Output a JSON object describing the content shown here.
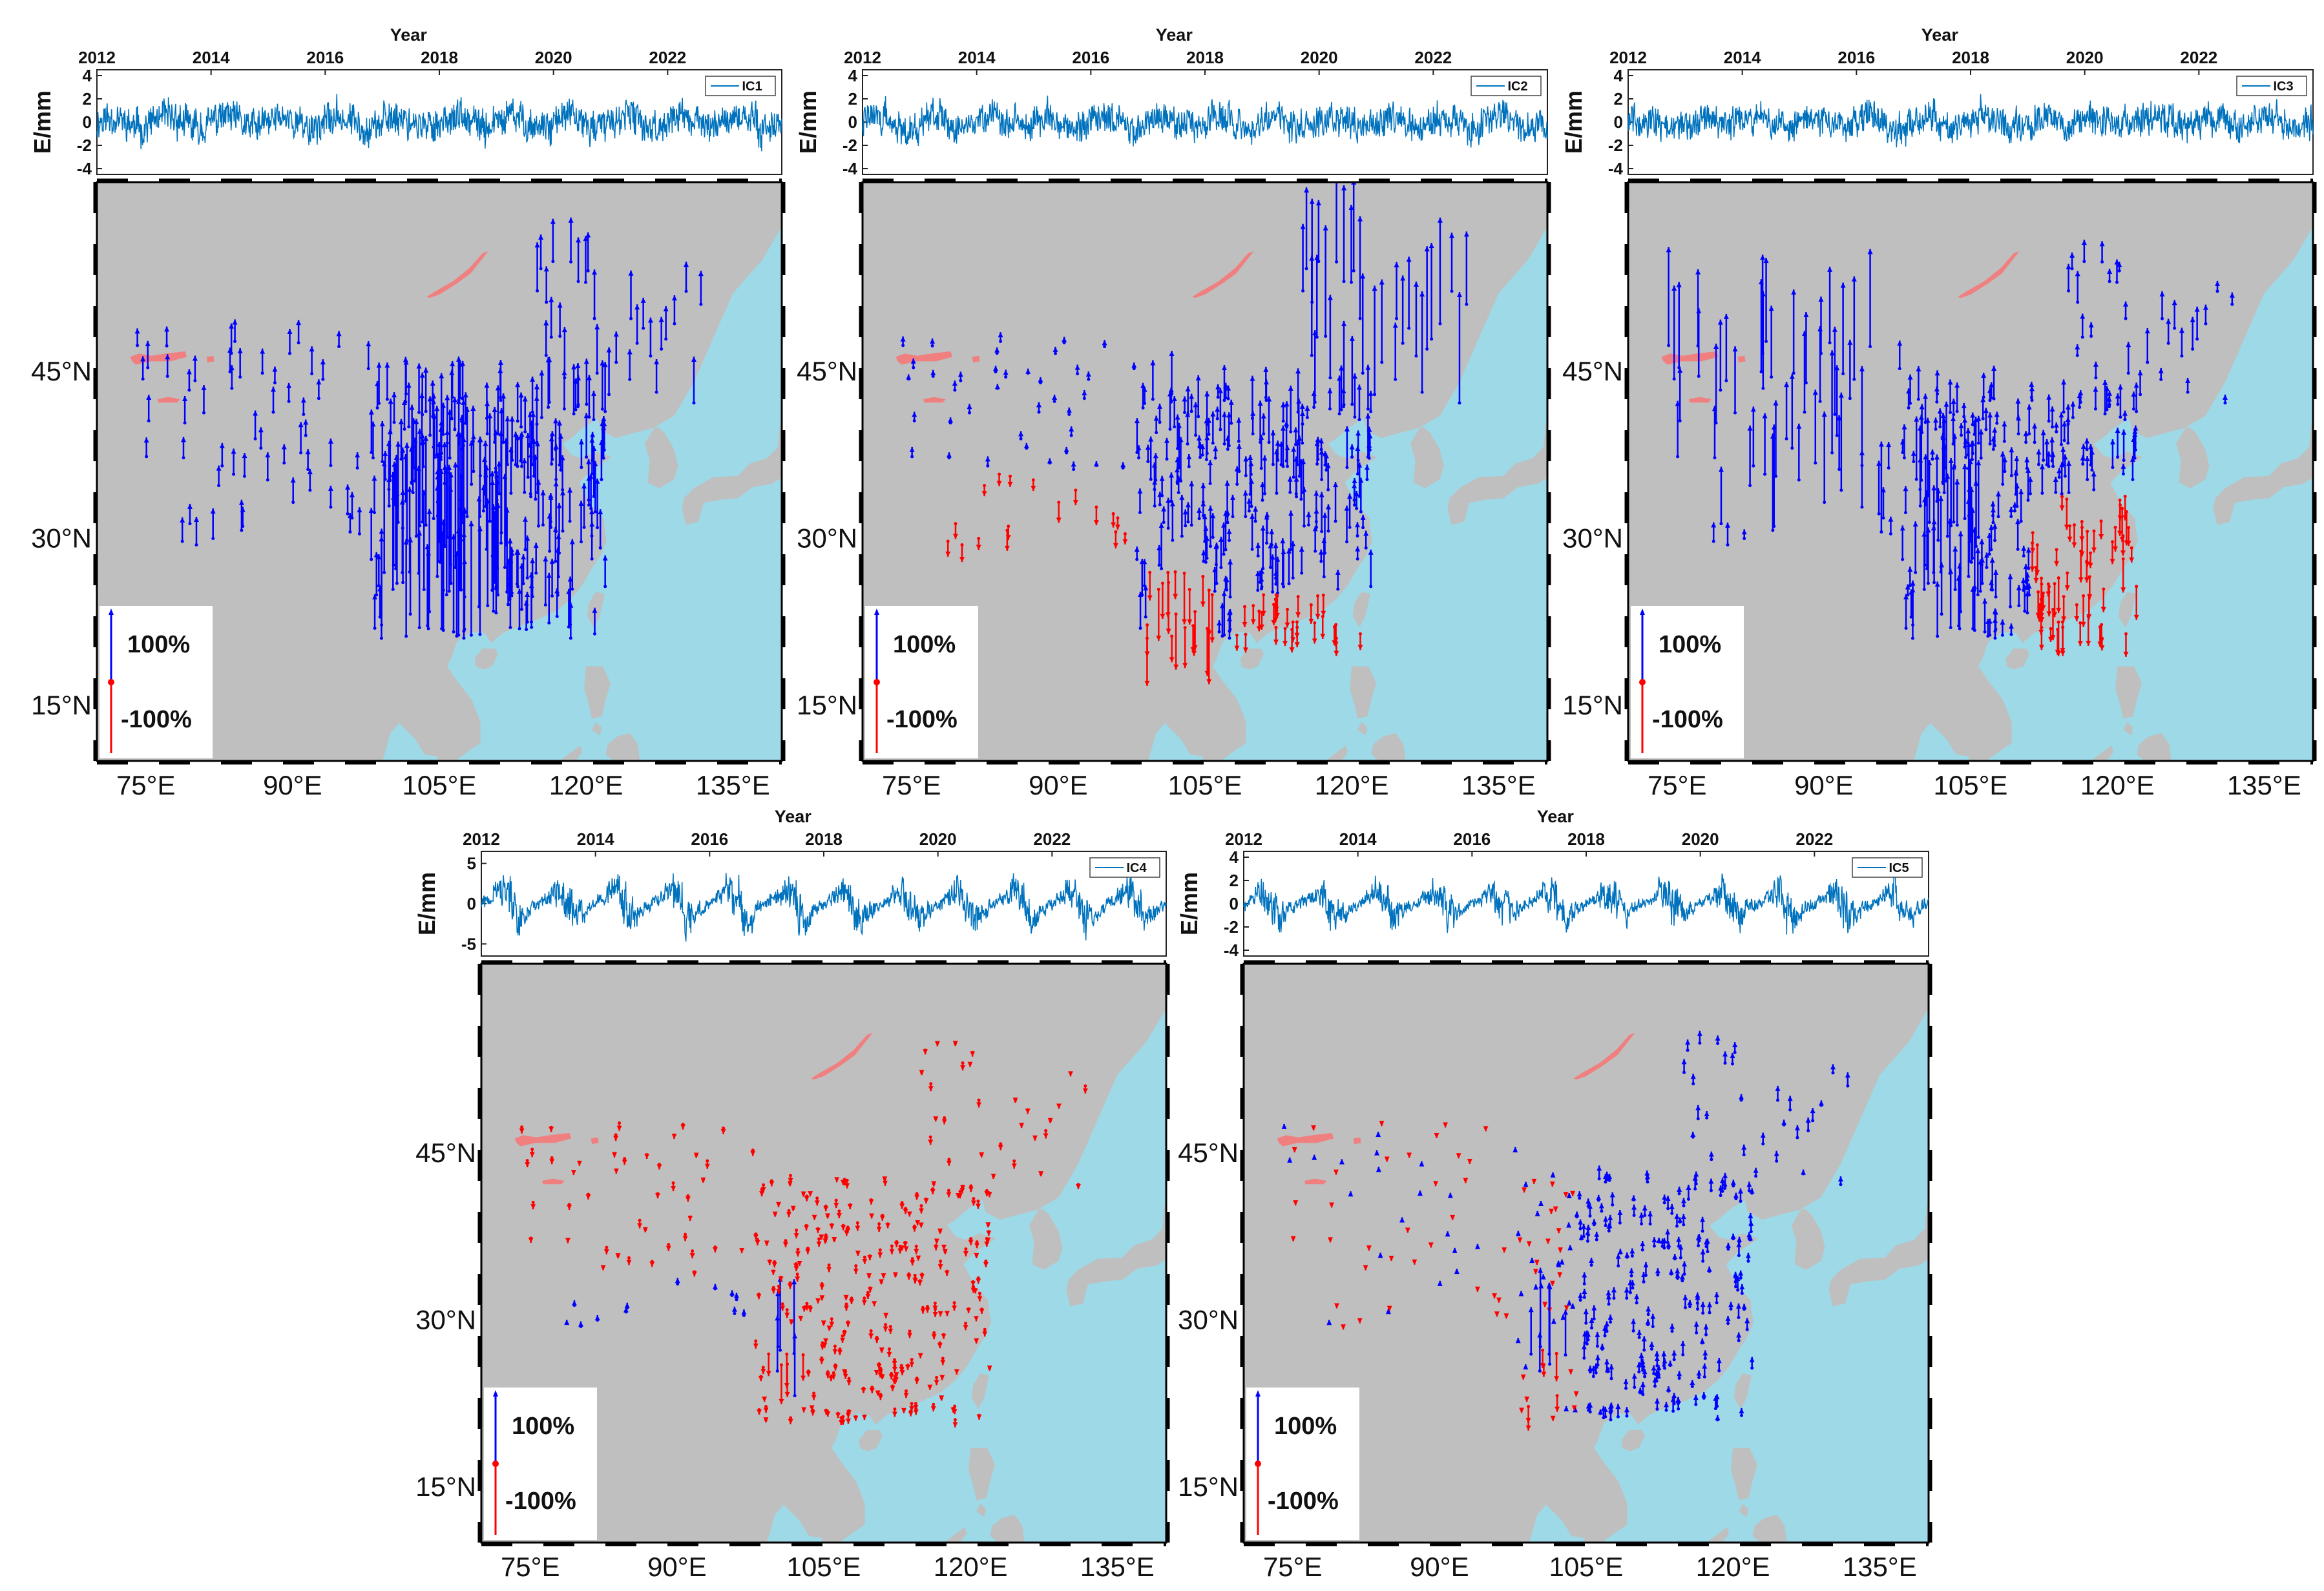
{
  "chart_data": [
    {
      "type": "line+map",
      "id": "IC1",
      "series": [
        {
          "name": "IC1",
          "description": "E component time series",
          "x_range": [
            2012,
            2024
          ],
          "y_amplitude": 3.2,
          "seed": 11,
          "seasonal": 0.3
        }
      ],
      "ts_title": "Year",
      "ts_xticks": [
        "2012",
        "2014",
        "2016",
        "2018",
        "2020",
        "2022"
      ],
      "ts_yticks": [
        "4",
        "2",
        "0",
        "-2",
        "-4"
      ],
      "ts_ylim": [
        -4.5,
        4.5
      ],
      "ts_ylabel": "E/mm",
      "ts_legend": "IC1",
      "map_lon_ticks": [
        "75°E",
        "90°E",
        "105°E",
        "120°E",
        "135°E"
      ],
      "map_lat_ticks": [
        "45°N",
        "30°N",
        "15°N"
      ],
      "map_lon_range": [
        70,
        140
      ],
      "map_lat_range": [
        10,
        62
      ],
      "legend_pos": "100%",
      "legend_neg": "-100%",
      "vectors": {
        "mode": "ic1",
        "seed": 101
      }
    },
    {
      "type": "line+map",
      "id": "IC2",
      "series": [
        {
          "name": "IC2",
          "description": "E component time series",
          "x_range": [
            2012,
            2024
          ],
          "y_amplitude": 3.0,
          "seed": 22,
          "seasonal": 0.4
        }
      ],
      "ts_title": "Year",
      "ts_xticks": [
        "2012",
        "2014",
        "2016",
        "2018",
        "2020",
        "2022"
      ],
      "ts_yticks": [
        "4",
        "2",
        "0",
        "-2",
        "-4"
      ],
      "ts_ylim": [
        -4.5,
        4.5
      ],
      "ts_ylabel": "E/mm",
      "ts_legend": "IC2",
      "map_lon_ticks": [
        "75°E",
        "90°E",
        "105°E",
        "120°E",
        "135°E"
      ],
      "map_lat_ticks": [
        "45°N",
        "30°N",
        "15°N"
      ],
      "map_lon_range": [
        70,
        140
      ],
      "map_lat_range": [
        10,
        62
      ],
      "legend_pos": "100%",
      "legend_neg": "-100%",
      "vectors": {
        "mode": "ic2",
        "seed": 202
      }
    },
    {
      "type": "line+map",
      "id": "IC3",
      "series": [
        {
          "name": "IC3",
          "description": "E component time series",
          "x_range": [
            2012,
            2024
          ],
          "y_amplitude": 3.0,
          "seed": 33,
          "seasonal": 0.3
        }
      ],
      "ts_title": "Year",
      "ts_xticks": [
        "2012",
        "2014",
        "2016",
        "2018",
        "2020",
        "2022"
      ],
      "ts_yticks": [
        "4",
        "2",
        "0",
        "-2",
        "-4"
      ],
      "ts_ylim": [
        -4.5,
        4.5
      ],
      "ts_ylabel": "E/mm",
      "ts_legend": "IC3",
      "map_lon_ticks": [
        "75°E",
        "90°E",
        "105°E",
        "120°E",
        "135°E"
      ],
      "map_lat_ticks": [
        "45°N",
        "30°N",
        "15°N"
      ],
      "map_lon_range": [
        70,
        140
      ],
      "map_lat_range": [
        10,
        62
      ],
      "legend_pos": "100%",
      "legend_neg": "-100%",
      "vectors": {
        "mode": "ic3",
        "seed": 303
      }
    },
    {
      "type": "line+map",
      "id": "IC4",
      "series": [
        {
          "name": "IC4",
          "description": "E component time series",
          "x_range": [
            2012,
            2024
          ],
          "y_amplitude": 5.0,
          "seed": 44,
          "seasonal": 1.0
        }
      ],
      "ts_title": "Year",
      "ts_xticks": [
        "2012",
        "2014",
        "2016",
        "2018",
        "2020",
        "2022"
      ],
      "ts_yticks": [
        "5",
        "0",
        "-5"
      ],
      "ts_ylim": [
        -6.5,
        6.5
      ],
      "ts_ylabel": "E/mm",
      "ts_legend": "IC4",
      "map_lon_ticks": [
        "75°E",
        "90°E",
        "105°E",
        "120°E",
        "135°E"
      ],
      "map_lat_ticks": [
        "45°N",
        "30°N",
        "15°N"
      ],
      "map_lon_range": [
        70,
        140
      ],
      "map_lat_range": [
        10,
        62
      ],
      "legend_pos": "100%",
      "legend_neg": "-100%",
      "vectors": {
        "mode": "ic4",
        "seed": 404
      }
    },
    {
      "type": "line+map",
      "id": "IC5",
      "series": [
        {
          "name": "IC5",
          "description": "E component time series",
          "x_range": [
            2012,
            2024
          ],
          "y_amplitude": 3.2,
          "seed": 55,
          "seasonal": 0.8
        }
      ],
      "ts_title": "Year",
      "ts_xticks": [
        "2012",
        "2014",
        "2016",
        "2018",
        "2020",
        "2022"
      ],
      "ts_yticks": [
        "4",
        "2",
        "0",
        "-2",
        "-4"
      ],
      "ts_ylim": [
        -4.5,
        4.5
      ],
      "ts_ylabel": "E/mm",
      "ts_legend": "IC5",
      "map_lon_ticks": [
        "75°E",
        "90°E",
        "105°E",
        "120°E",
        "135°E"
      ],
      "map_lat_ticks": [
        "45°N",
        "30°N",
        "15°N"
      ],
      "map_lon_range": [
        70,
        140
      ],
      "map_lat_range": [
        10,
        62
      ],
      "legend_pos": "100%",
      "legend_neg": "-100%",
      "vectors": {
        "mode": "ic5",
        "seed": 505
      }
    }
  ],
  "colors": {
    "land": "#bfbfbf",
    "sea": "#9ed9e7",
    "lake": "#f08080",
    "positive": "#0000ff",
    "negative": "#ff0000",
    "series": "#0072bd"
  }
}
